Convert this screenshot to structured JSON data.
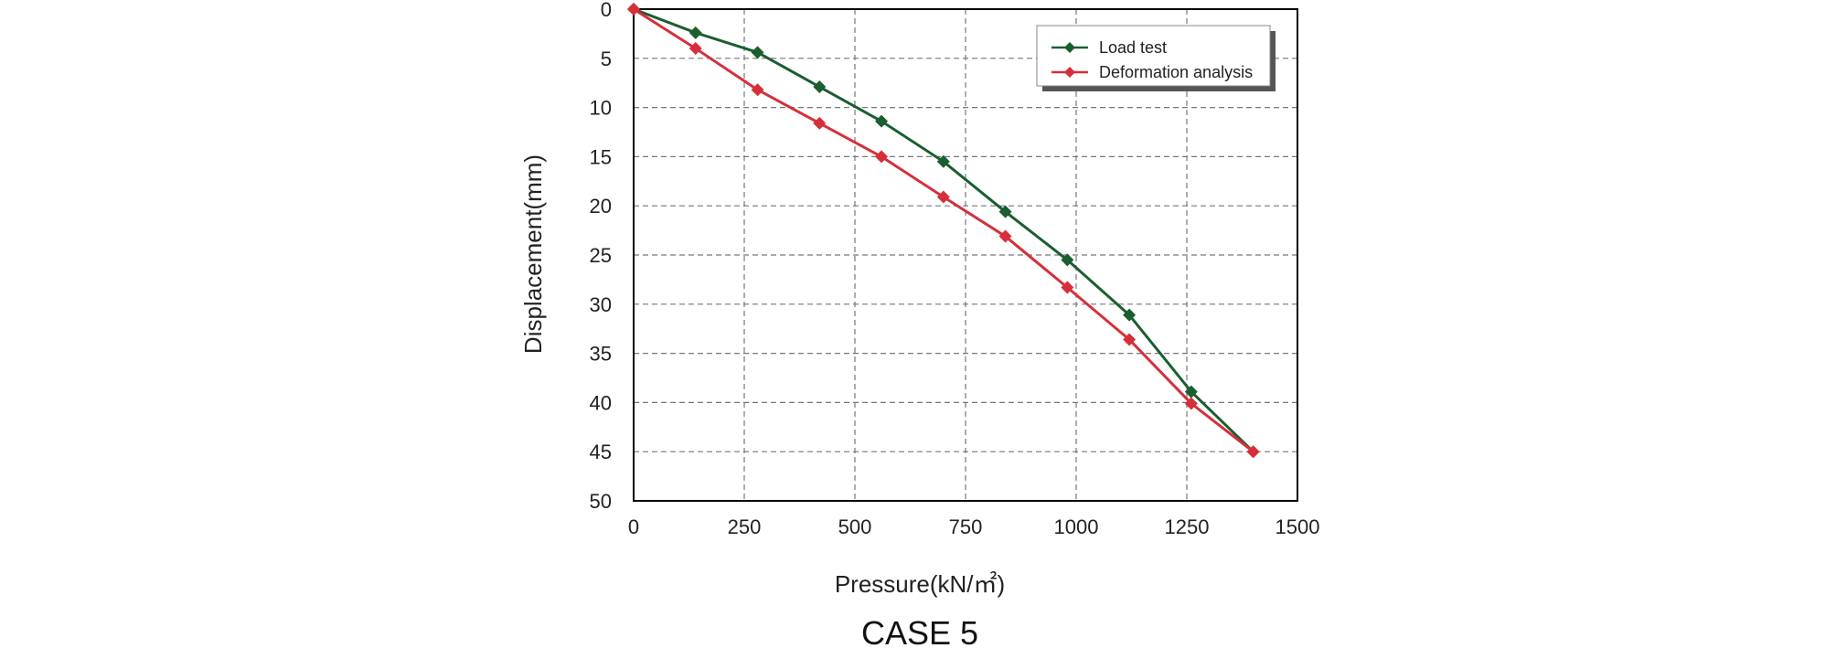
{
  "chart_data": {
    "type": "line",
    "xlabel": "Pressure(kN/㎡)",
    "ylabel": "Displacement(mm)",
    "caption": "CASE 5",
    "xlim": [
      0,
      1500
    ],
    "ylim": [
      0,
      50
    ],
    "y_inverted": true,
    "xticks": [
      0,
      250,
      500,
      750,
      1000,
      1250,
      1500
    ],
    "yticks": [
      0,
      5,
      10,
      15,
      20,
      25,
      30,
      35,
      40,
      45,
      50
    ],
    "grid": true,
    "legend_position": "top-right",
    "series": [
      {
        "name": "Load test",
        "color": "#1b5e2f",
        "x": [
          0,
          140,
          280,
          420,
          560,
          700,
          840,
          980,
          1120,
          1260,
          1400
        ],
        "y": [
          0,
          2.4,
          4.4,
          7.9,
          11.4,
          15.5,
          20.6,
          25.5,
          31.1,
          38.9,
          45.0
        ]
      },
      {
        "name": "Deformation analysis",
        "color": "#d62f3a",
        "x": [
          0,
          140,
          280,
          420,
          560,
          700,
          840,
          980,
          1120,
          1260,
          1400
        ],
        "y": [
          0,
          4.0,
          8.2,
          11.6,
          15.0,
          19.1,
          23.1,
          28.3,
          33.6,
          40.1,
          45.0
        ]
      }
    ]
  }
}
